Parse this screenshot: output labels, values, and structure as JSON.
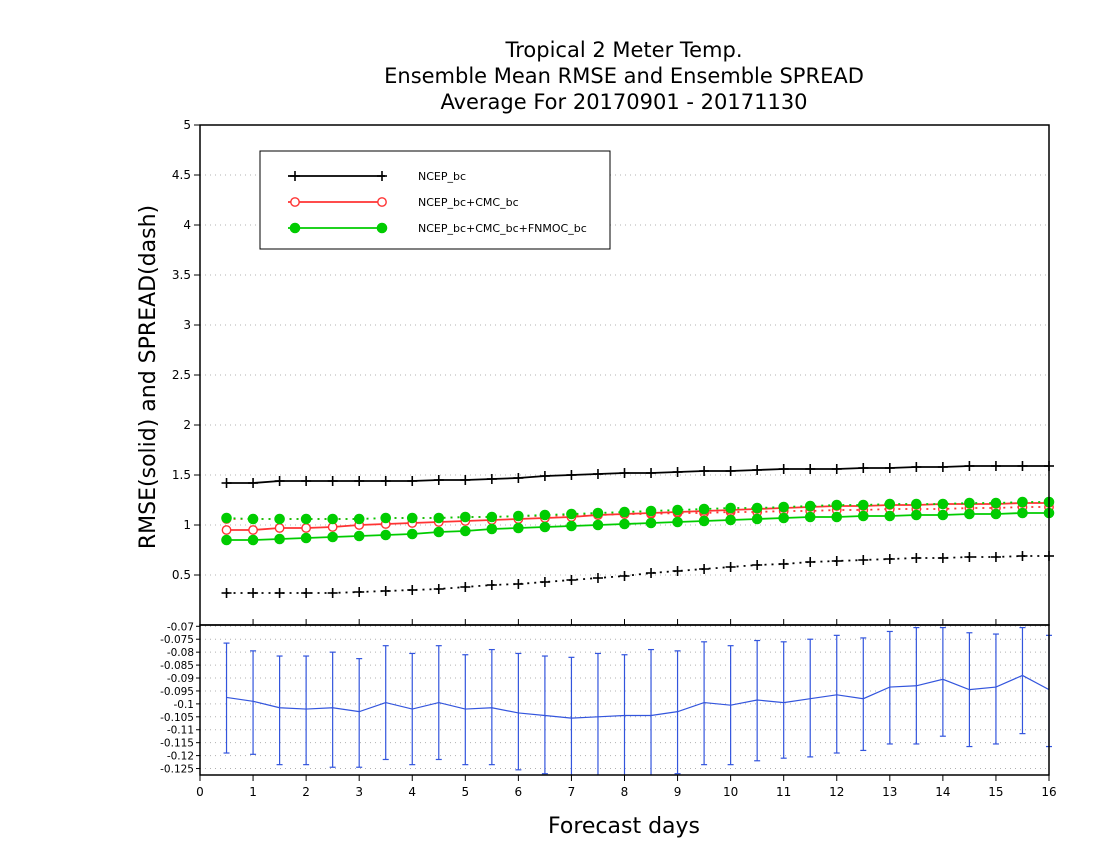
{
  "chart_data": [
    {
      "type": "line",
      "title": [
        "Tropical 2 Meter Temp.",
        "Ensemble Mean RMSE and Ensemble SPREAD",
        "Average For 20170901 - 20171130"
      ],
      "ylabel": "RMSE(solid)  and  SPREAD(dash)",
      "ylim": [
        0,
        5
      ],
      "yticks": [
        "0.5",
        "1",
        "1.5",
        "2",
        "2.5",
        "3",
        "3.5",
        "4",
        "4.5",
        "5"
      ],
      "xlim": [
        0,
        16
      ],
      "x": [
        0.5,
        1,
        1.5,
        2,
        2.5,
        3,
        3.5,
        4,
        4.5,
        5,
        5.5,
        6,
        6.5,
        7,
        7.5,
        8,
        8.5,
        9,
        9.5,
        10,
        10.5,
        11,
        11.5,
        12,
        12.5,
        13,
        13.5,
        14,
        14.5,
        15,
        15.5,
        16
      ],
      "grid": true,
      "legend_position": "top-left",
      "series": [
        {
          "name": "NCEP_bc",
          "color": "#000000",
          "marker": "plus",
          "rmse": [
            1.42,
            1.42,
            1.44,
            1.44,
            1.44,
            1.44,
            1.44,
            1.44,
            1.45,
            1.45,
            1.46,
            1.47,
            1.49,
            1.5,
            1.51,
            1.52,
            1.52,
            1.53,
            1.54,
            1.54,
            1.55,
            1.56,
            1.56,
            1.56,
            1.57,
            1.57,
            1.58,
            1.58,
            1.59,
            1.59,
            1.59,
            1.59
          ],
          "spread": [
            0.32,
            0.32,
            0.32,
            0.32,
            0.32,
            0.33,
            0.34,
            0.35,
            0.36,
            0.38,
            0.4,
            0.41,
            0.43,
            0.45,
            0.47,
            0.49,
            0.52,
            0.54,
            0.56,
            0.58,
            0.6,
            0.61,
            0.63,
            0.64,
            0.65,
            0.66,
            0.67,
            0.67,
            0.68,
            0.68,
            0.69,
            0.69
          ]
        },
        {
          "name": "NCEP_bc+CMC_bc",
          "color": "#ff3333",
          "marker": "open-circle",
          "rmse": [
            0.95,
            0.95,
            0.97,
            0.97,
            0.98,
            1.0,
            1.01,
            1.02,
            1.03,
            1.04,
            1.05,
            1.06,
            1.07,
            1.08,
            1.1,
            1.11,
            1.12,
            1.13,
            1.14,
            1.15,
            1.16,
            1.17,
            1.18,
            1.19,
            1.19,
            1.2,
            1.2,
            1.21,
            1.21,
            1.21,
            1.22,
            1.22
          ],
          "spread": [
            1.06,
            1.06,
            1.06,
            1.06,
            1.06,
            1.06,
            1.07,
            1.07,
            1.07,
            1.08,
            1.08,
            1.09,
            1.09,
            1.1,
            1.1,
            1.11,
            1.11,
            1.12,
            1.12,
            1.13,
            1.13,
            1.14,
            1.14,
            1.15,
            1.15,
            1.16,
            1.16,
            1.16,
            1.17,
            1.17,
            1.18,
            1.18
          ]
        },
        {
          "name": "NCEP_bc+CMC_bc+FNMOC_bc",
          "color": "#00cc00",
          "marker": "filled-circle",
          "rmse": [
            0.85,
            0.85,
            0.86,
            0.87,
            0.88,
            0.89,
            0.9,
            0.91,
            0.93,
            0.94,
            0.96,
            0.97,
            0.98,
            0.99,
            1.0,
            1.01,
            1.02,
            1.03,
            1.04,
            1.05,
            1.06,
            1.07,
            1.08,
            1.08,
            1.09,
            1.09,
            1.1,
            1.1,
            1.11,
            1.11,
            1.12,
            1.12
          ],
          "spread": [
            1.07,
            1.06,
            1.06,
            1.06,
            1.06,
            1.06,
            1.07,
            1.07,
            1.07,
            1.08,
            1.08,
            1.09,
            1.1,
            1.11,
            1.12,
            1.13,
            1.14,
            1.15,
            1.16,
            1.17,
            1.17,
            1.18,
            1.19,
            1.2,
            1.2,
            1.21,
            1.21,
            1.21,
            1.22,
            1.22,
            1.23,
            1.23
          ]
        }
      ]
    },
    {
      "type": "line",
      "xlabel": "Forecast days",
      "xticks": [
        "0",
        "1",
        "2",
        "3",
        "4",
        "5",
        "6",
        "7",
        "8",
        "9",
        "10",
        "11",
        "12",
        "13",
        "14",
        "15",
        "16"
      ],
      "ylim": [
        -0.1275,
        -0.0695
      ],
      "yticks": [
        "-0.07",
        "-0.075",
        "-0.08",
        "-0.085",
        "-0.09",
        "-0.095",
        "-0.1",
        "-0.105",
        "-0.11",
        "-0.115",
        "-0.12",
        "-0.125"
      ],
      "color": "#3355dd",
      "x": [
        0.5,
        1,
        1.5,
        2,
        2.5,
        3,
        3.5,
        4,
        4.5,
        5,
        5.5,
        6,
        6.5,
        7,
        7.5,
        8,
        8.5,
        9,
        9.5,
        10,
        10.5,
        11,
        11.5,
        12,
        12.5,
        13,
        13.5,
        14,
        14.5,
        15,
        15.5,
        16
      ],
      "values": [
        -0.0975,
        -0.099,
        -0.1015,
        -0.102,
        -0.1015,
        -0.103,
        -0.0995,
        -0.102,
        -0.0995,
        -0.102,
        -0.1015,
        -0.1035,
        -0.1045,
        -0.1055,
        -0.105,
        -0.1045,
        -0.1045,
        -0.103,
        -0.0995,
        -0.1005,
        -0.0985,
        -0.0995,
        -0.098,
        -0.0965,
        -0.098,
        -0.0935,
        -0.093,
        -0.0905,
        -0.0945,
        -0.0935,
        -0.089,
        -0.0945
      ],
      "upper": [
        -0.0765,
        -0.0795,
        -0.0815,
        -0.0815,
        -0.08,
        -0.0825,
        -0.0775,
        -0.0805,
        -0.0775,
        -0.081,
        -0.079,
        -0.0805,
        -0.0815,
        -0.082,
        -0.0805,
        -0.081,
        -0.079,
        -0.0795,
        -0.076,
        -0.0775,
        -0.0755,
        -0.076,
        -0.075,
        -0.0735,
        -0.0745,
        -0.072,
        -0.0705,
        -0.0705,
        -0.0725,
        -0.073,
        -0.0705,
        -0.0735
      ],
      "lower": [
        -0.119,
        -0.1195,
        -0.1235,
        -0.1235,
        -0.1245,
        -0.1245,
        -0.1215,
        -0.1235,
        -0.1215,
        -0.1235,
        -0.1235,
        -0.1255,
        -0.127,
        -0.129,
        -0.1285,
        -0.128,
        -0.13,
        -0.127,
        -0.1235,
        -0.1235,
        -0.122,
        -0.121,
        -0.1205,
        -0.119,
        -0.118,
        -0.1155,
        -0.1155,
        -0.1125,
        -0.1165,
        -0.1155,
        -0.1115,
        -0.1165
      ]
    }
  ]
}
